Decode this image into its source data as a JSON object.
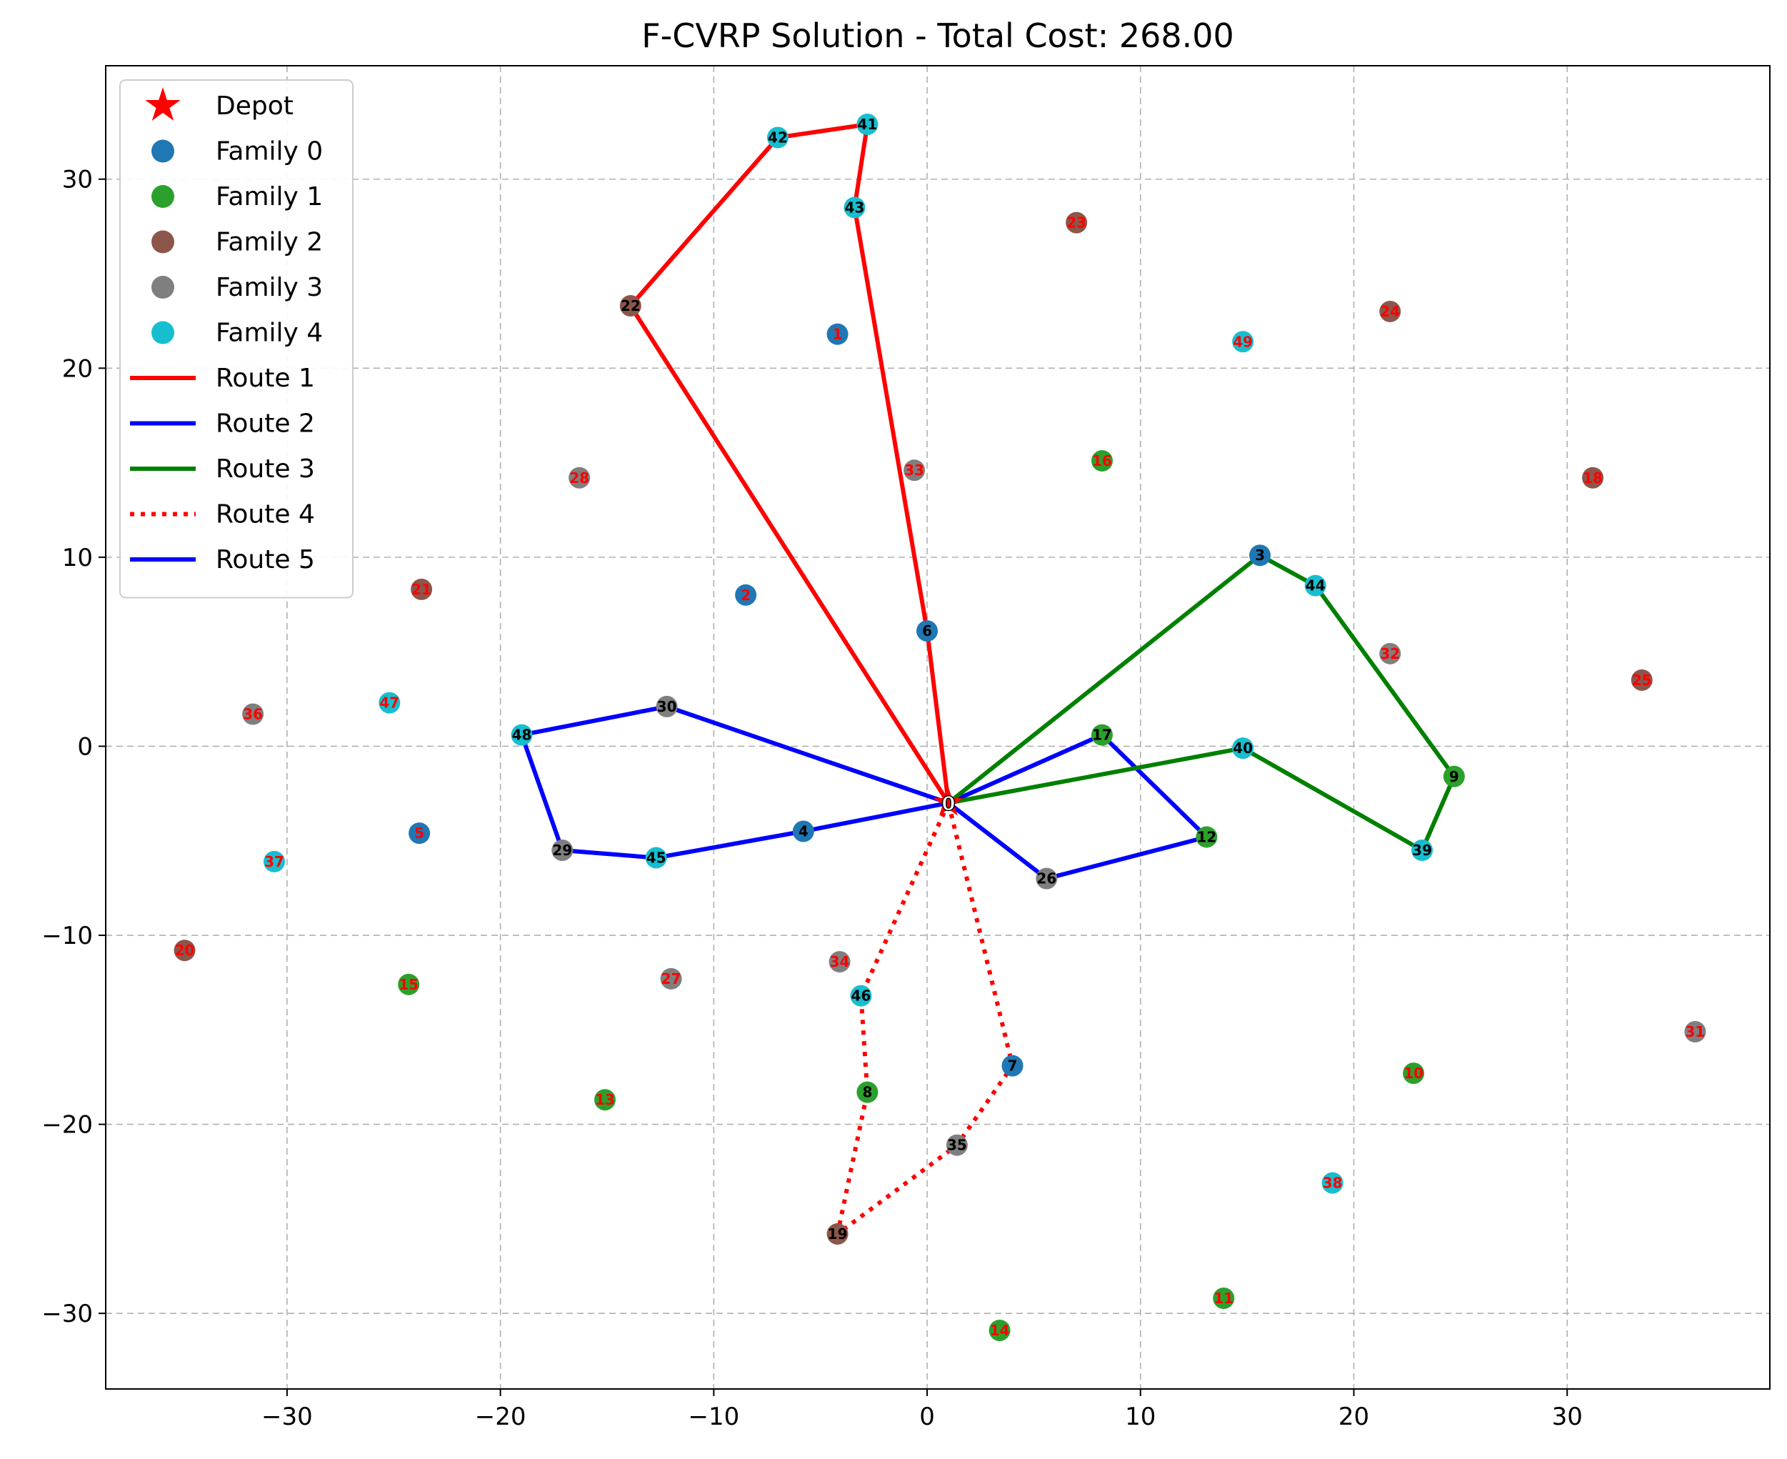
{
  "chart_data": {
    "type": "scatter",
    "title": "F-CVRP Solution - Total Cost: 268.00",
    "xlabel": "",
    "ylabel": "",
    "xlim": [
      -38.5,
      39.5
    ],
    "ylim": [
      -34.0,
      36.0
    ],
    "xticks": [
      -30,
      -20,
      -10,
      0,
      10,
      20,
      30
    ],
    "yticks": [
      -30,
      -20,
      -10,
      0,
      10,
      20,
      30
    ],
    "grid": true,
    "legend_position": "upper-left",
    "depot": {
      "id": 0,
      "label": "0",
      "x": 1.0,
      "y": -3.0,
      "legend": "Depot",
      "color": "#ff0000"
    },
    "families": [
      {
        "name": "Family 0",
        "color": "#1f77b4"
      },
      {
        "name": "Family 1",
        "color": "#2ca02c"
      },
      {
        "name": "Family 2",
        "color": "#8c564b"
      },
      {
        "name": "Family 3",
        "color": "#7f7f7f"
      },
      {
        "name": "Family 4",
        "color": "#17becf"
      }
    ],
    "customers": [
      {
        "id": 1,
        "label": "1",
        "x": -4.2,
        "y": 21.8,
        "family": 0,
        "visited": false
      },
      {
        "id": 2,
        "label": "2",
        "x": -8.5,
        "y": 8.0,
        "family": 0,
        "visited": false
      },
      {
        "id": 3,
        "label": "3",
        "x": 15.6,
        "y": 10.1,
        "family": 0,
        "visited": true
      },
      {
        "id": 4,
        "label": "4",
        "x": -5.8,
        "y": -4.5,
        "family": 0,
        "visited": true
      },
      {
        "id": 5,
        "label": "5",
        "x": -23.8,
        "y": -4.6,
        "family": 0,
        "visited": false
      },
      {
        "id": 6,
        "label": "6",
        "x": 0.0,
        "y": 6.1,
        "family": 0,
        "visited": true
      },
      {
        "id": 7,
        "label": "7",
        "x": 4.0,
        "y": -16.9,
        "family": 0,
        "visited": true
      },
      {
        "id": 8,
        "label": "8",
        "x": -2.8,
        "y": -18.3,
        "family": 1,
        "visited": true
      },
      {
        "id": 9,
        "label": "9",
        "x": 24.7,
        "y": -1.6,
        "family": 1,
        "visited": true
      },
      {
        "id": 10,
        "label": "10",
        "x": 22.8,
        "y": -17.3,
        "family": 1,
        "visited": false
      },
      {
        "id": 11,
        "label": "11",
        "x": 13.9,
        "y": -29.2,
        "family": 1,
        "visited": false
      },
      {
        "id": 12,
        "label": "12",
        "x": 13.1,
        "y": -4.8,
        "family": 1,
        "visited": true
      },
      {
        "id": 13,
        "label": "13",
        "x": -15.1,
        "y": -18.7,
        "family": 1,
        "visited": false
      },
      {
        "id": 14,
        "label": "14",
        "x": 3.4,
        "y": -30.9,
        "family": 1,
        "visited": false
      },
      {
        "id": 15,
        "label": "15",
        "x": -24.3,
        "y": -12.6,
        "family": 1,
        "visited": false
      },
      {
        "id": 16,
        "label": "16",
        "x": 8.2,
        "y": 15.1,
        "family": 1,
        "visited": false
      },
      {
        "id": 17,
        "label": "17",
        "x": 8.2,
        "y": 0.6,
        "family": 1,
        "visited": true
      },
      {
        "id": 18,
        "label": "18",
        "x": 31.2,
        "y": 14.2,
        "family": 2,
        "visited": false
      },
      {
        "id": 19,
        "label": "19",
        "x": -4.2,
        "y": -25.8,
        "family": 2,
        "visited": true
      },
      {
        "id": 20,
        "label": "20",
        "x": -34.8,
        "y": -10.8,
        "family": 2,
        "visited": false
      },
      {
        "id": 21,
        "label": "21",
        "x": -23.7,
        "y": 8.3,
        "family": 2,
        "visited": false
      },
      {
        "id": 22,
        "label": "22",
        "x": -13.9,
        "y": 23.3,
        "family": 2,
        "visited": true
      },
      {
        "id": 23,
        "label": "23",
        "x": 7.0,
        "y": 27.7,
        "family": 2,
        "visited": false
      },
      {
        "id": 24,
        "label": "24",
        "x": 21.7,
        "y": 23.0,
        "family": 2,
        "visited": false
      },
      {
        "id": 25,
        "label": "25",
        "x": 33.5,
        "y": 3.5,
        "family": 2,
        "visited": false
      },
      {
        "id": 26,
        "label": "26",
        "x": 5.6,
        "y": -7.0,
        "family": 3,
        "visited": true
      },
      {
        "id": 27,
        "label": "27",
        "x": -12.0,
        "y": -12.3,
        "family": 3,
        "visited": false
      },
      {
        "id": 28,
        "label": "28",
        "x": -16.3,
        "y": 14.2,
        "family": 3,
        "visited": false
      },
      {
        "id": 29,
        "label": "29",
        "x": -17.1,
        "y": -5.5,
        "family": 3,
        "visited": true
      },
      {
        "id": 30,
        "label": "30",
        "x": -12.2,
        "y": 2.1,
        "family": 3,
        "visited": true
      },
      {
        "id": 31,
        "label": "31",
        "x": 36.0,
        "y": -15.1,
        "family": 3,
        "visited": false
      },
      {
        "id": 32,
        "label": "32",
        "x": 21.7,
        "y": 4.9,
        "family": 3,
        "visited": false
      },
      {
        "id": 33,
        "label": "33",
        "x": -0.6,
        "y": 14.6,
        "family": 3,
        "visited": false
      },
      {
        "id": 34,
        "label": "34",
        "x": -4.1,
        "y": -11.4,
        "family": 3,
        "visited": false
      },
      {
        "id": 35,
        "label": "35",
        "x": 1.4,
        "y": -21.1,
        "family": 3,
        "visited": true
      },
      {
        "id": 36,
        "label": "36",
        "x": -31.6,
        "y": 1.7,
        "family": 3,
        "visited": false
      },
      {
        "id": 37,
        "label": "37",
        "x": -30.6,
        "y": -6.1,
        "family": 4,
        "visited": false
      },
      {
        "id": 38,
        "label": "38",
        "x": 19.0,
        "y": -23.1,
        "family": 4,
        "visited": false
      },
      {
        "id": 39,
        "label": "39",
        "x": 23.2,
        "y": -5.5,
        "family": 4,
        "visited": true
      },
      {
        "id": 40,
        "label": "40",
        "x": 14.8,
        "y": -0.1,
        "family": 4,
        "visited": true
      },
      {
        "id": 41,
        "label": "41",
        "x": -2.8,
        "y": 32.9,
        "family": 4,
        "visited": true
      },
      {
        "id": 42,
        "label": "42",
        "x": -7.0,
        "y": 32.2,
        "family": 4,
        "visited": true
      },
      {
        "id": 43,
        "label": "43",
        "x": -3.4,
        "y": 28.5,
        "family": 4,
        "visited": true
      },
      {
        "id": 44,
        "label": "44",
        "x": 18.2,
        "y": 8.5,
        "family": 4,
        "visited": true
      },
      {
        "id": 45,
        "label": "45",
        "x": -12.7,
        "y": -5.9,
        "family": 4,
        "visited": true
      },
      {
        "id": 46,
        "label": "46",
        "x": -3.1,
        "y": -13.2,
        "family": 4,
        "visited": true
      },
      {
        "id": 47,
        "label": "47",
        "x": -25.2,
        "y": 2.3,
        "family": 4,
        "visited": false
      },
      {
        "id": 48,
        "label": "48",
        "x": -19.0,
        "y": 0.6,
        "family": 4,
        "visited": true
      },
      {
        "id": 49,
        "label": "49",
        "x": 14.8,
        "y": 21.4,
        "family": 4,
        "visited": false
      }
    ],
    "series": [
      {
        "name": "Route 1",
        "color": "#ff0000",
        "style": "solid",
        "path": [
          0,
          22,
          42,
          41,
          43,
          6,
          0
        ]
      },
      {
        "name": "Route 2",
        "color": "#0000ff",
        "style": "solid",
        "path": [
          0,
          17,
          12,
          26,
          0
        ]
      },
      {
        "name": "Route 3",
        "color": "#008000",
        "style": "solid",
        "path": [
          0,
          3,
          44,
          9,
          39,
          40,
          0
        ]
      },
      {
        "name": "Route 4",
        "color": "#ff0000",
        "style": "dotted",
        "path": [
          0,
          46,
          8,
          19,
          35,
          7,
          0
        ]
      },
      {
        "name": "Route 5",
        "color": "#0000ff",
        "style": "solid",
        "path": [
          0,
          30,
          48,
          29,
          45,
          4,
          0
        ]
      }
    ],
    "label_colors": {
      "visited": "#000000",
      "unvisited": "#ff0000"
    }
  }
}
